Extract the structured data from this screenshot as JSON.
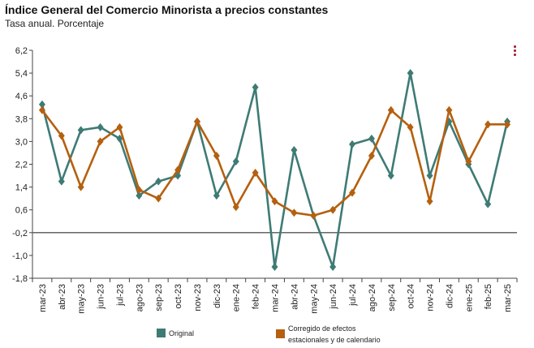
{
  "chart_data": {
    "type": "line",
    "title": "Índice General del Comercio Minorista a precios constantes",
    "subtitle": "Tasa anual. Porcentaje",
    "xlabel": "",
    "ylabel": "",
    "ylim": [
      -1.8,
      6.2
    ],
    "yticks": [
      "6,2",
      "5,4",
      "4,6",
      "3,8",
      "3,0",
      "2,2",
      "1,4",
      "0,6",
      "-0,2",
      "-1,0",
      "-1,8"
    ],
    "ytick_values": [
      6.2,
      5.4,
      4.6,
      3.8,
      3.0,
      2.2,
      1.4,
      0.6,
      -0.2,
      -1.0,
      -1.8
    ],
    "reference_line": -0.2,
    "categories": [
      "mar-23",
      "abr-23",
      "may-23",
      "jun-23",
      "jul-23",
      "ago-23",
      "sep-23",
      "oct-23",
      "nov-23",
      "dic-23",
      "ene-24",
      "feb-24",
      "mar-24",
      "abr-24",
      "may-24",
      "jun-24",
      "jul-24",
      "ago-24",
      "sep-24",
      "oct-24",
      "nov-24",
      "dic-24",
      "ene-25",
      "feb-25",
      "mar-25"
    ],
    "series": [
      {
        "name": "Original",
        "color": "#3e7b75",
        "values": [
          4.3,
          1.6,
          3.4,
          3.5,
          3.1,
          1.1,
          1.6,
          1.8,
          3.7,
          1.1,
          2.3,
          4.9,
          -1.4,
          2.7,
          0.4,
          -1.4,
          2.9,
          3.1,
          1.8,
          5.4,
          1.8,
          3.7,
          2.2,
          0.8,
          3.7
        ]
      },
      {
        "name": "Corregido de efectos estacionales y de calendario",
        "name_lines": [
          "Corregido de efectos",
          "estacionales y de calendario"
        ],
        "color": "#b5600f",
        "values": [
          4.1,
          3.2,
          1.4,
          3.0,
          3.5,
          1.3,
          1.0,
          2.0,
          3.7,
          2.5,
          0.7,
          1.9,
          0.9,
          0.5,
          0.4,
          0.6,
          1.2,
          2.5,
          4.1,
          3.5,
          0.9,
          4.1,
          2.3,
          3.6,
          3.6
        ]
      }
    ],
    "legend": "bottom"
  },
  "menu": {
    "icon": "more-vertical-icon"
  }
}
